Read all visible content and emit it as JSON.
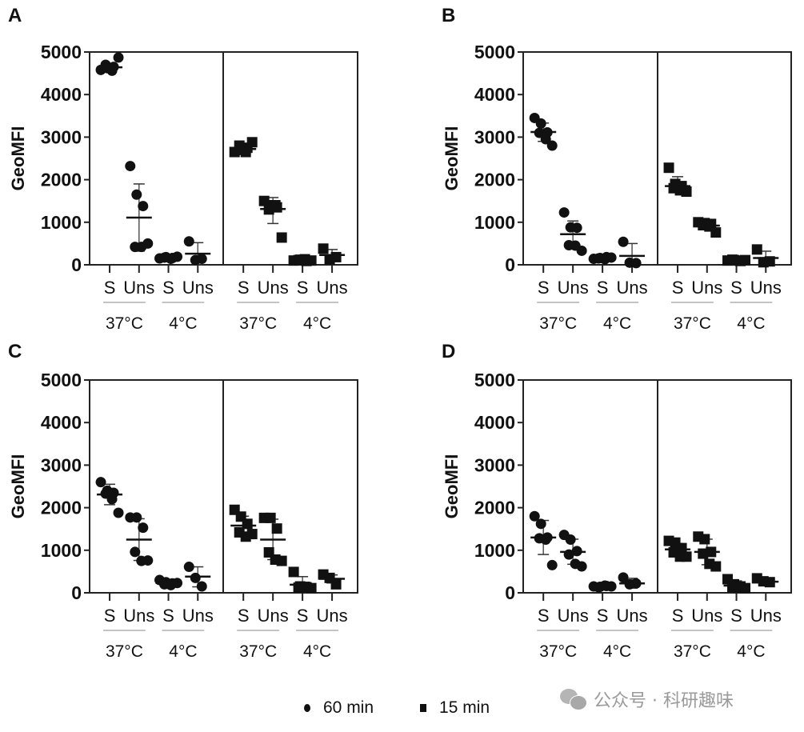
{
  "figure": {
    "panel_letters": [
      "A",
      "B",
      "C",
      "D"
    ],
    "legend": [
      {
        "marker": "circle",
        "label": "60 min"
      },
      {
        "marker": "square",
        "label": "15 min"
      }
    ],
    "watermark": {
      "icon": "wechat-icon",
      "text": "公众号 · 科研趣味"
    }
  },
  "chart_data": [
    {
      "panel": "A",
      "type": "scatter",
      "ylabel": "GeoMFI",
      "ylim": [
        0,
        5000
      ],
      "yticks": [
        0,
        1000,
        2000,
        3000,
        4000,
        5000
      ],
      "categories": [
        "S",
        "Uns",
        "S",
        "Uns"
      ],
      "groups": [
        "37°C",
        "4°C"
      ],
      "series": [
        {
          "name": "60 min",
          "marker": "circle",
          "points": [
            {
              "cat": 0,
              "values": [
                4580,
                4620,
                4650,
                4700,
                4560,
                4870
              ],
              "mean": 4640,
              "sd_low": 4560,
              "sd_high": 4720
            },
            {
              "cat": 1,
              "values": [
                2320,
                1650,
                1380,
                420,
                420,
                500
              ],
              "mean": 1110,
              "sd_low": 320,
              "sd_high": 1900
            },
            {
              "cat": 2,
              "values": [
                150,
                180,
                160,
                170,
                140,
                190
              ],
              "mean": 165,
              "sd_low": 140,
              "sd_high": 190
            },
            {
              "cat": 3,
              "values": [
                550,
                110,
                140
              ],
              "mean": 260,
              "sd_low": 0,
              "sd_high": 520
            }
          ]
        },
        {
          "name": "15 min",
          "marker": "square",
          "points": [
            {
              "cat": 0,
              "values": [
                2650,
                2700,
                2750,
                2800,
                2650,
                2880
              ],
              "mean": 2720,
              "sd_low": 2630,
              "sd_high": 2810
            },
            {
              "cat": 1,
              "values": [
                1500,
                1400,
                1350,
                1300,
                1400,
                640
              ],
              "mean": 1310,
              "sd_low": 970,
              "sd_high": 1580
            },
            {
              "cat": 2,
              "values": [
                100,
                120,
                90,
                110,
                130,
                100
              ],
              "mean": 110,
              "sd_low": 80,
              "sd_high": 140
            },
            {
              "cat": 3,
              "values": [
                380,
                130,
                180
              ],
              "mean": 230,
              "sd_low": 100,
              "sd_high": 360
            }
          ]
        }
      ]
    },
    {
      "panel": "B",
      "type": "scatter",
      "ylabel": "GeoMFI",
      "ylim": [
        0,
        5000
      ],
      "yticks": [
        0,
        1000,
        2000,
        3000,
        4000,
        5000
      ],
      "categories": [
        "S",
        "Uns",
        "S",
        "Uns"
      ],
      "groups": [
        "37°C",
        "4°C"
      ],
      "series": [
        {
          "name": "60 min",
          "marker": "circle",
          "points": [
            {
              "cat": 0,
              "values": [
                3450,
                3320,
                3110,
                3100,
                2950,
                2800
              ],
              "mean": 3120,
              "sd_low": 2900,
              "sd_high": 3330
            },
            {
              "cat": 1,
              "values": [
                1230,
                880,
                870,
                460,
                450,
                330
              ],
              "mean": 720,
              "sd_low": 410,
              "sd_high": 1030
            },
            {
              "cat": 2,
              "values": [
                140,
                160,
                180,
                150,
                130,
                170
              ],
              "mean": 155,
              "sd_low": 130,
              "sd_high": 180
            },
            {
              "cat": 3,
              "values": [
                540,
                50,
                40
              ],
              "mean": 210,
              "sd_low": 0,
              "sd_high": 500
            }
          ]
        },
        {
          "name": "15 min",
          "marker": "square",
          "points": [
            {
              "cat": 0,
              "values": [
                2280,
                1900,
                1850,
                1800,
                1750,
                1720
              ],
              "mean": 1850,
              "sd_low": 1700,
              "sd_high": 2070
            },
            {
              "cat": 1,
              "values": [
                1000,
                980,
                960,
                930,
                900,
                760
              ],
              "mean": 920,
              "sd_low": 850,
              "sd_high": 990
            },
            {
              "cat": 2,
              "values": [
                100,
                110,
                90,
                120,
                100,
                110
              ],
              "mean": 105,
              "sd_low": 80,
              "sd_high": 130
            },
            {
              "cat": 3,
              "values": [
                360,
                60,
                80
              ],
              "mean": 160,
              "sd_low": 0,
              "sd_high": 320
            }
          ]
        }
      ]
    },
    {
      "panel": "C",
      "type": "scatter",
      "ylabel": "GeoMFI",
      "ylim": [
        0,
        5000
      ],
      "yticks": [
        0,
        1000,
        2000,
        3000,
        4000,
        5000
      ],
      "categories": [
        "S",
        "Uns",
        "S",
        "Uns"
      ],
      "groups": [
        "37°C",
        "4°C"
      ],
      "series": [
        {
          "name": "60 min",
          "marker": "circle",
          "points": [
            {
              "cat": 0,
              "values": [
                2600,
                2400,
                2350,
                2330,
                2200,
                1880
              ],
              "mean": 2310,
              "sd_low": 2070,
              "sd_high": 2550
            },
            {
              "cat": 1,
              "values": [
                1770,
                1770,
                1530,
                960,
                750,
                760
              ],
              "mean": 1250,
              "sd_low": 760,
              "sd_high": 1740
            },
            {
              "cat": 2,
              "values": [
                300,
                250,
                220,
                200,
                180,
                230
              ],
              "mean": 230,
              "sd_low": 170,
              "sd_high": 290
            },
            {
              "cat": 3,
              "values": [
                610,
                350,
                150
              ],
              "mean": 380,
              "sd_low": 140,
              "sd_high": 610
            }
          ]
        },
        {
          "name": "15 min",
          "marker": "square",
          "points": [
            {
              "cat": 0,
              "values": [
                1950,
                1790,
                1620,
                1420,
                1320,
                1380
              ],
              "mean": 1580,
              "sd_low": 1360,
              "sd_high": 1800
            },
            {
              "cat": 1,
              "values": [
                1760,
                1760,
                1510,
                950,
                780,
                750
              ],
              "mean": 1250,
              "sd_low": 780,
              "sd_high": 1730
            },
            {
              "cat": 2,
              "values": [
                490,
                150,
                130,
                120,
                140,
                110
              ],
              "mean": 190,
              "sd_low": 20,
              "sd_high": 380
            },
            {
              "cat": 3,
              "values": [
                430,
                350,
                200
              ],
              "mean": 330,
              "sd_low": 230,
              "sd_high": 420
            }
          ]
        }
      ]
    },
    {
      "panel": "D",
      "type": "scatter",
      "ylabel": "GeoMFI",
      "ylim": [
        0,
        5000
      ],
      "yticks": [
        0,
        1000,
        2000,
        3000,
        4000,
        5000
      ],
      "categories": [
        "S",
        "Uns",
        "S",
        "Uns"
      ],
      "groups": [
        "37°C",
        "4°C"
      ],
      "series": [
        {
          "name": "60 min",
          "marker": "circle",
          "points": [
            {
              "cat": 0,
              "values": [
                1800,
                1620,
                1300,
                1280,
                1250,
                650
              ],
              "mean": 1300,
              "sd_low": 900,
              "sd_high": 1700
            },
            {
              "cat": 1,
              "values": [
                1360,
                1250,
                980,
                900,
                680,
                620
              ],
              "mean": 960,
              "sd_low": 670,
              "sd_high": 1260
            },
            {
              "cat": 2,
              "values": [
                150,
                140,
                160,
                130,
                170,
                150
              ],
              "mean": 150,
              "sd_low": 130,
              "sd_high": 170
            },
            {
              "cat": 3,
              "values": [
                360,
                200,
                220
              ],
              "mean": 220,
              "sd_low": 110,
              "sd_high": 340
            }
          ]
        },
        {
          "name": "15 min",
          "marker": "square",
          "points": [
            {
              "cat": 0,
              "values": [
                1220,
                1180,
                1050,
                950,
                850,
                850
              ],
              "mean": 1020,
              "sd_low": 880,
              "sd_high": 1160
            },
            {
              "cat": 1,
              "values": [
                1320,
                1260,
                960,
                920,
                680,
                620
              ],
              "mean": 960,
              "sd_low": 660,
              "sd_high": 1260
            },
            {
              "cat": 2,
              "values": [
                320,
                200,
                150,
                130,
                120,
                110
              ],
              "mean": 170,
              "sd_low": 60,
              "sd_high": 280
            },
            {
              "cat": 3,
              "values": [
                340,
                270,
                250
              ],
              "mean": 260,
              "sd_low": 220,
              "sd_high": 300
            }
          ]
        }
      ]
    }
  ]
}
